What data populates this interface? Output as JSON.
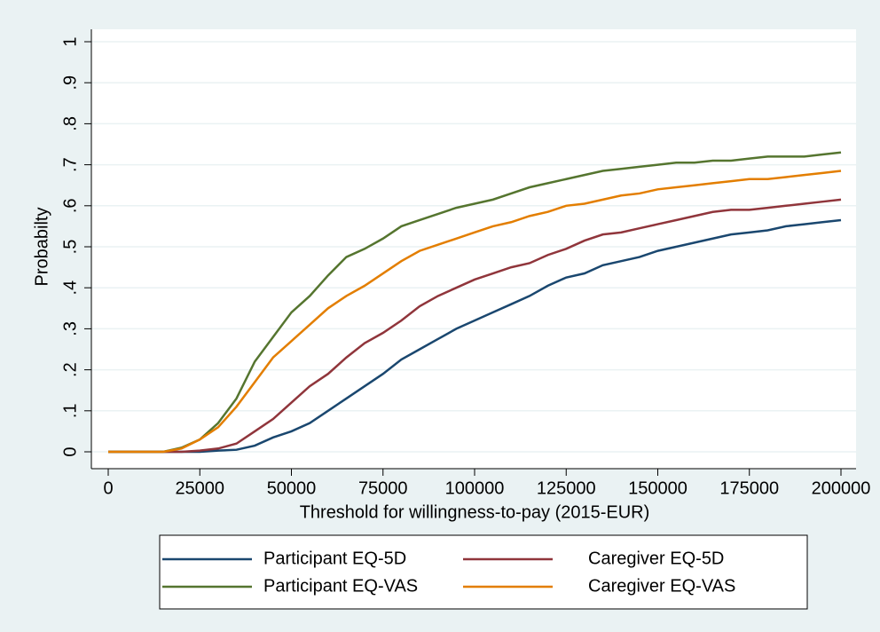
{
  "chart_data": {
    "type": "line",
    "xlabel": "Threshold for willingness-to-pay (2015-EUR)",
    "ylabel": "Probabilty",
    "x": [
      0,
      5000,
      10000,
      15000,
      20000,
      25000,
      30000,
      35000,
      40000,
      45000,
      50000,
      55000,
      60000,
      65000,
      70000,
      75000,
      80000,
      85000,
      90000,
      95000,
      100000,
      105000,
      110000,
      115000,
      120000,
      125000,
      130000,
      135000,
      140000,
      145000,
      150000,
      155000,
      160000,
      165000,
      170000,
      175000,
      180000,
      185000,
      190000,
      195000,
      200000
    ],
    "series": [
      {
        "name": "Participant EQ-5D",
        "color": "#1a476f",
        "values": [
          0,
          0,
          0,
          0,
          0,
          0,
          0.003,
          0.005,
          0.015,
          0.035,
          0.05,
          0.07,
          0.1,
          0.13,
          0.16,
          0.19,
          0.225,
          0.25,
          0.275,
          0.3,
          0.32,
          0.34,
          0.36,
          0.38,
          0.405,
          0.425,
          0.435,
          0.455,
          0.465,
          0.475,
          0.49,
          0.5,
          0.51,
          0.52,
          0.53,
          0.535,
          0.54,
          0.55,
          0.555,
          0.56,
          0.565
        ]
      },
      {
        "name": "Caregiver EQ-5D",
        "color": "#90353b",
        "values": [
          0,
          0,
          0,
          0,
          0,
          0.003,
          0.008,
          0.02,
          0.05,
          0.08,
          0.12,
          0.16,
          0.19,
          0.23,
          0.265,
          0.29,
          0.32,
          0.355,
          0.38,
          0.4,
          0.42,
          0.435,
          0.45,
          0.46,
          0.48,
          0.495,
          0.515,
          0.53,
          0.535,
          0.545,
          0.555,
          0.565,
          0.575,
          0.585,
          0.59,
          0.59,
          0.595,
          0.6,
          0.605,
          0.61,
          0.615
        ]
      },
      {
        "name": "Participant EQ-VAS",
        "color": "#55752f",
        "values": [
          0,
          0,
          0,
          0,
          0.01,
          0.03,
          0.07,
          0.13,
          0.22,
          0.28,
          0.34,
          0.38,
          0.43,
          0.475,
          0.495,
          0.52,
          0.55,
          0.565,
          0.58,
          0.595,
          0.605,
          0.615,
          0.63,
          0.645,
          0.655,
          0.665,
          0.675,
          0.685,
          0.69,
          0.695,
          0.7,
          0.705,
          0.705,
          0.71,
          0.71,
          0.715,
          0.72,
          0.72,
          0.72,
          0.725,
          0.73
        ]
      },
      {
        "name": "Caregiver EQ-VAS",
        "color": "#e37e00",
        "values": [
          0,
          0,
          0,
          0,
          0.008,
          0.03,
          0.06,
          0.11,
          0.17,
          0.23,
          0.27,
          0.31,
          0.35,
          0.38,
          0.405,
          0.435,
          0.465,
          0.49,
          0.505,
          0.52,
          0.535,
          0.55,
          0.56,
          0.575,
          0.585,
          0.6,
          0.605,
          0.615,
          0.625,
          0.63,
          0.64,
          0.645,
          0.65,
          0.655,
          0.66,
          0.665,
          0.665,
          0.67,
          0.675,
          0.68,
          0.685
        ]
      }
    ],
    "xlim": [
      0,
      200000
    ],
    "xticks": [
      0,
      25000,
      50000,
      75000,
      100000,
      125000,
      150000,
      175000,
      200000
    ],
    "ylim": [
      0,
      1
    ],
    "yticks": [
      0,
      {
        "value": 0.1,
        "label": ".1"
      },
      {
        "value": 0.2,
        "label": ".2"
      },
      {
        "value": 0.3,
        "label": ".3"
      },
      {
        "value": 0.4,
        "label": ".4"
      },
      {
        "value": 0.5,
        "label": ".5"
      },
      {
        "value": 0.6,
        "label": ".6"
      },
      {
        "value": 0.7,
        "label": ".7"
      },
      {
        "value": 0.8,
        "label": ".8"
      },
      {
        "value": 0.9,
        "label": ".9"
      },
      1
    ],
    "grid": true,
    "legend": "bottom"
  }
}
